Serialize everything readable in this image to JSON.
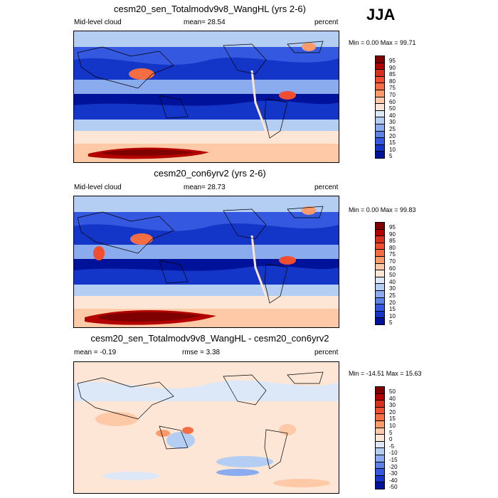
{
  "season": "JJA",
  "panels": [
    {
      "title": "cesm20_sen_Totalmodv9v8_WangHL (yrs 2-6)",
      "left_label": "Mid-level cloud",
      "center_label": "mean=  28.54",
      "right_label": "percent",
      "min_max": "Min =   0.00 Max =  99.71",
      "colorbar": [
        "95",
        "90",
        "85",
        "80",
        "75",
        "70",
        "60",
        "50",
        "40",
        "30",
        "25",
        "20",
        "15",
        "10",
        "5"
      ],
      "colors": [
        "#7f0000",
        "#b30000",
        "#d7301f",
        "#ef4f30",
        "#f46d43",
        "#fb9a6a",
        "#fdc9a7",
        "#fde6d6",
        "#dce8f8",
        "#b4cdf2",
        "#8aabed",
        "#5c82e6",
        "#3459e0",
        "#1436c8",
        "#00129a"
      ]
    },
    {
      "title": "cesm20_con6yrv2 (yrs 2-6)",
      "left_label": "Mid-level cloud",
      "center_label": "mean=  28.73",
      "right_label": "percent",
      "min_max": "Min =   0.00 Max =  99.83",
      "colorbar": [
        "95",
        "90",
        "85",
        "80",
        "75",
        "70",
        "60",
        "50",
        "40",
        "30",
        "25",
        "20",
        "15",
        "10",
        "5"
      ],
      "colors": [
        "#7f0000",
        "#b30000",
        "#d7301f",
        "#ef4f30",
        "#f46d43",
        "#fb9a6a",
        "#fdc9a7",
        "#fde6d6",
        "#dce8f8",
        "#b4cdf2",
        "#8aabed",
        "#5c82e6",
        "#3459e0",
        "#1436c8",
        "#00129a"
      ]
    },
    {
      "title": "cesm20_sen_Totalmodv9v8_WangHL - cesm20_con6yrv2",
      "left_label": "mean =  -0.19",
      "center_label": "rmse =   3.38",
      "right_label": "percent",
      "min_max": "Min = -14.51 Max =  15.63",
      "colorbar": [
        "50",
        "40",
        "30",
        "20",
        "15",
        "10",
        "5",
        "0",
        "-5",
        "-10",
        "-15",
        "-20",
        "-30",
        "-40",
        "-50"
      ],
      "colors": [
        "#7f0000",
        "#b30000",
        "#d7301f",
        "#ef4f30",
        "#f46d43",
        "#fb9a6a",
        "#fdc9a7",
        "#fde6d6",
        "#dce8f8",
        "#b4cdf2",
        "#8aabed",
        "#5c82e6",
        "#3459e0",
        "#1436c8",
        "#00129a"
      ]
    }
  ]
}
